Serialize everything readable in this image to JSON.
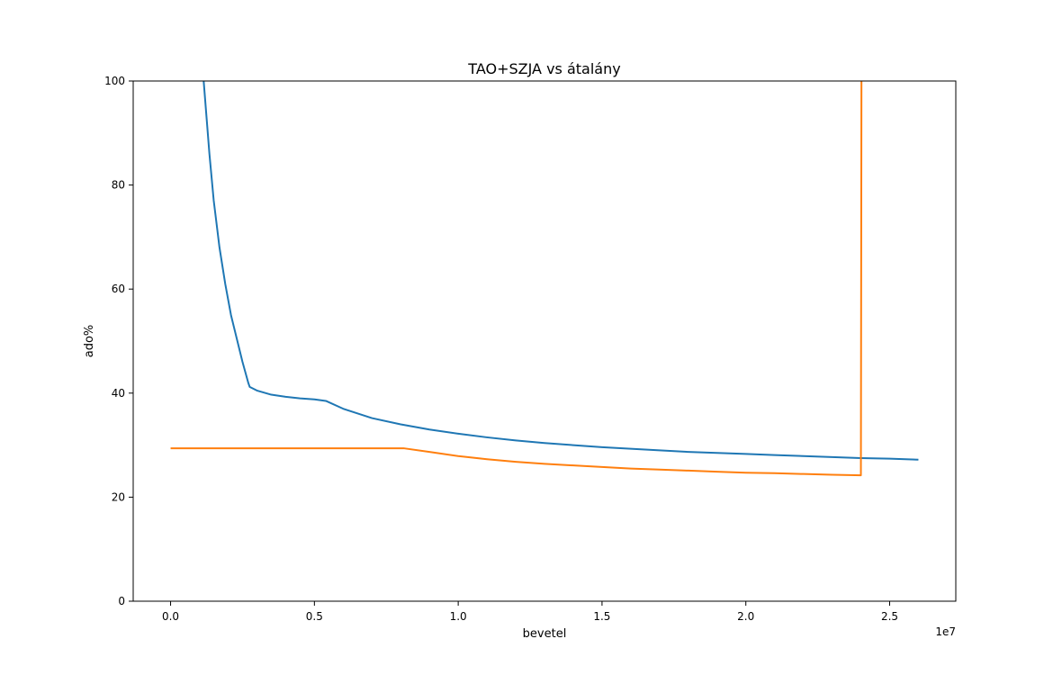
{
  "chart_data": {
    "type": "line",
    "title": "TAO+SZJA vs átalány",
    "xlabel": "bevetel",
    "ylabel": "ado%",
    "x_offset_label": "1e7",
    "x_scale": 10000000,
    "xlim": [
      -1300000,
      27300000
    ],
    "ylim": [
      0,
      100
    ],
    "x_ticks": [
      0,
      5000000,
      10000000,
      15000000,
      20000000,
      25000000
    ],
    "x_tick_labels": [
      "0.0",
      "0.5",
      "1.0",
      "1.5",
      "2.0",
      "2.5"
    ],
    "y_ticks": [
      0,
      20,
      40,
      60,
      80,
      100
    ],
    "y_tick_labels": [
      "0",
      "20",
      "40",
      "60",
      "80",
      "100"
    ],
    "grid": false,
    "series": [
      {
        "color": "#1f77b4",
        "points": [
          [
            1150000,
            100
          ],
          [
            1250000,
            93
          ],
          [
            1350000,
            86
          ],
          [
            1500000,
            77
          ],
          [
            1700000,
            68
          ],
          [
            1900000,
            61
          ],
          [
            2100000,
            55
          ],
          [
            2300000,
            50.5
          ],
          [
            2500000,
            46
          ],
          [
            2700000,
            42
          ],
          [
            2750000,
            41.2
          ],
          [
            3000000,
            40.5
          ],
          [
            3500000,
            39.7
          ],
          [
            4000000,
            39.3
          ],
          [
            4500000,
            39
          ],
          [
            5000000,
            38.8
          ],
          [
            5400000,
            38.5
          ],
          [
            6000000,
            37
          ],
          [
            7000000,
            35.2
          ],
          [
            8000000,
            34
          ],
          [
            9000000,
            33
          ],
          [
            10000000,
            32.2
          ],
          [
            11000000,
            31.5
          ],
          [
            12000000,
            30.9
          ],
          [
            13000000,
            30.4
          ],
          [
            14000000,
            30
          ],
          [
            15000000,
            29.6
          ],
          [
            16000000,
            29.3
          ],
          [
            17000000,
            29
          ],
          [
            18000000,
            28.7
          ],
          [
            19000000,
            28.5
          ],
          [
            20000000,
            28.3
          ],
          [
            21000000,
            28.1
          ],
          [
            22000000,
            27.9
          ],
          [
            23000000,
            27.7
          ],
          [
            24000000,
            27.5
          ],
          [
            25000000,
            27.4
          ],
          [
            26000000,
            27.2
          ]
        ]
      },
      {
        "color": "#ff7f0e",
        "points": [
          [
            0,
            29.4
          ],
          [
            8100000,
            29.4
          ],
          [
            9000000,
            28.7
          ],
          [
            10000000,
            27.9
          ],
          [
            11000000,
            27.3
          ],
          [
            12000000,
            26.8
          ],
          [
            13000000,
            26.4
          ],
          [
            14000000,
            26.1
          ],
          [
            15000000,
            25.8
          ],
          [
            16000000,
            25.5
          ],
          [
            17000000,
            25.3
          ],
          [
            18000000,
            25.1
          ],
          [
            19000000,
            24.9
          ],
          [
            20000000,
            24.7
          ],
          [
            21000000,
            24.6
          ],
          [
            22000000,
            24.45
          ],
          [
            23000000,
            24.3
          ],
          [
            24000000,
            24.2
          ],
          [
            24020000,
            100
          ]
        ]
      }
    ]
  }
}
